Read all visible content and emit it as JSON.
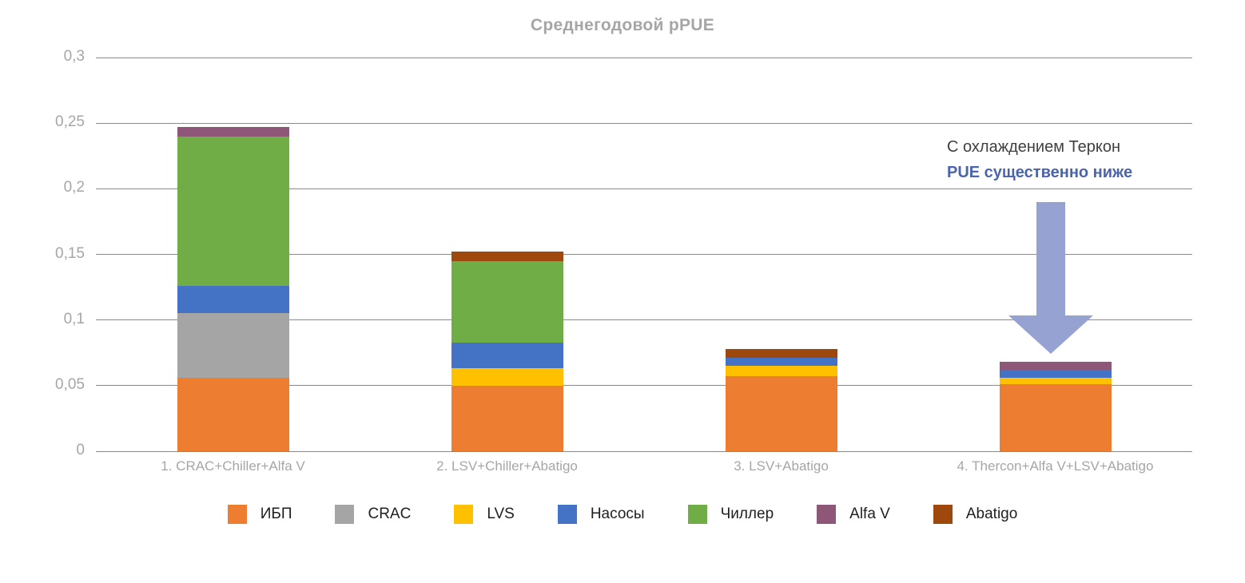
{
  "chart_data": {
    "type": "bar",
    "subtype": "stacked-vertical",
    "title": "Среднегодовой pPUE",
    "categories": [
      "1. CRAC+Chiller+Alfa V",
      "2. LSV+Chiller+Abatigo",
      "3. LSV+Abatigo",
      "4. Thercon+Alfa V+LSV+Abatigo"
    ],
    "series": [
      {
        "name": "ИБП",
        "color": "#ED7D31",
        "values": [
          0.056,
          0.05,
          0.057,
          0.051
        ]
      },
      {
        "name": "CRAC",
        "color": "#A5A5A5",
        "values": [
          0.049,
          0,
          0,
          0
        ]
      },
      {
        "name": "LVS",
        "color": "#FFC000",
        "values": [
          0,
          0.013,
          0.008,
          0.005
        ]
      },
      {
        "name": "Насосы",
        "color": "#4472C4",
        "values": [
          0.021,
          0.02,
          0.006,
          0.006
        ]
      },
      {
        "name": "Чиллер",
        "color": "#70AD47",
        "values": [
          0.114,
          0.062,
          0,
          0
        ]
      },
      {
        "name": "Alfa V",
        "color": "#8E5677",
        "values": [
          0.007,
          0,
          0,
          0.006
        ]
      },
      {
        "name": "Abatigo",
        "color": "#9E480E",
        "values": [
          0,
          0.007,
          0.007,
          0
        ]
      }
    ],
    "xlabel": "",
    "ylabel": "",
    "ylim": [
      0,
      0.3
    ],
    "ytick_labels": [
      "0",
      "0,05",
      "0,1",
      "0,15",
      "0,2",
      "0,25",
      "0,3"
    ],
    "grid": true,
    "gridline_color": "#8A8A8A",
    "legend_position": "bottom",
    "axis_text_color": "#A6A6A6",
    "legend_text_color": "#1F1F1F"
  },
  "annotation": {
    "line1": "С охлаждением Теркон",
    "line2": "PUE существенно ниже",
    "line1_color": "#404040",
    "line2_color": "#4A64AE",
    "arrow_color": "#96A2D2",
    "arrow_points_to_category": "4. Thercon+Alfa V+LSV+Abatigo"
  }
}
